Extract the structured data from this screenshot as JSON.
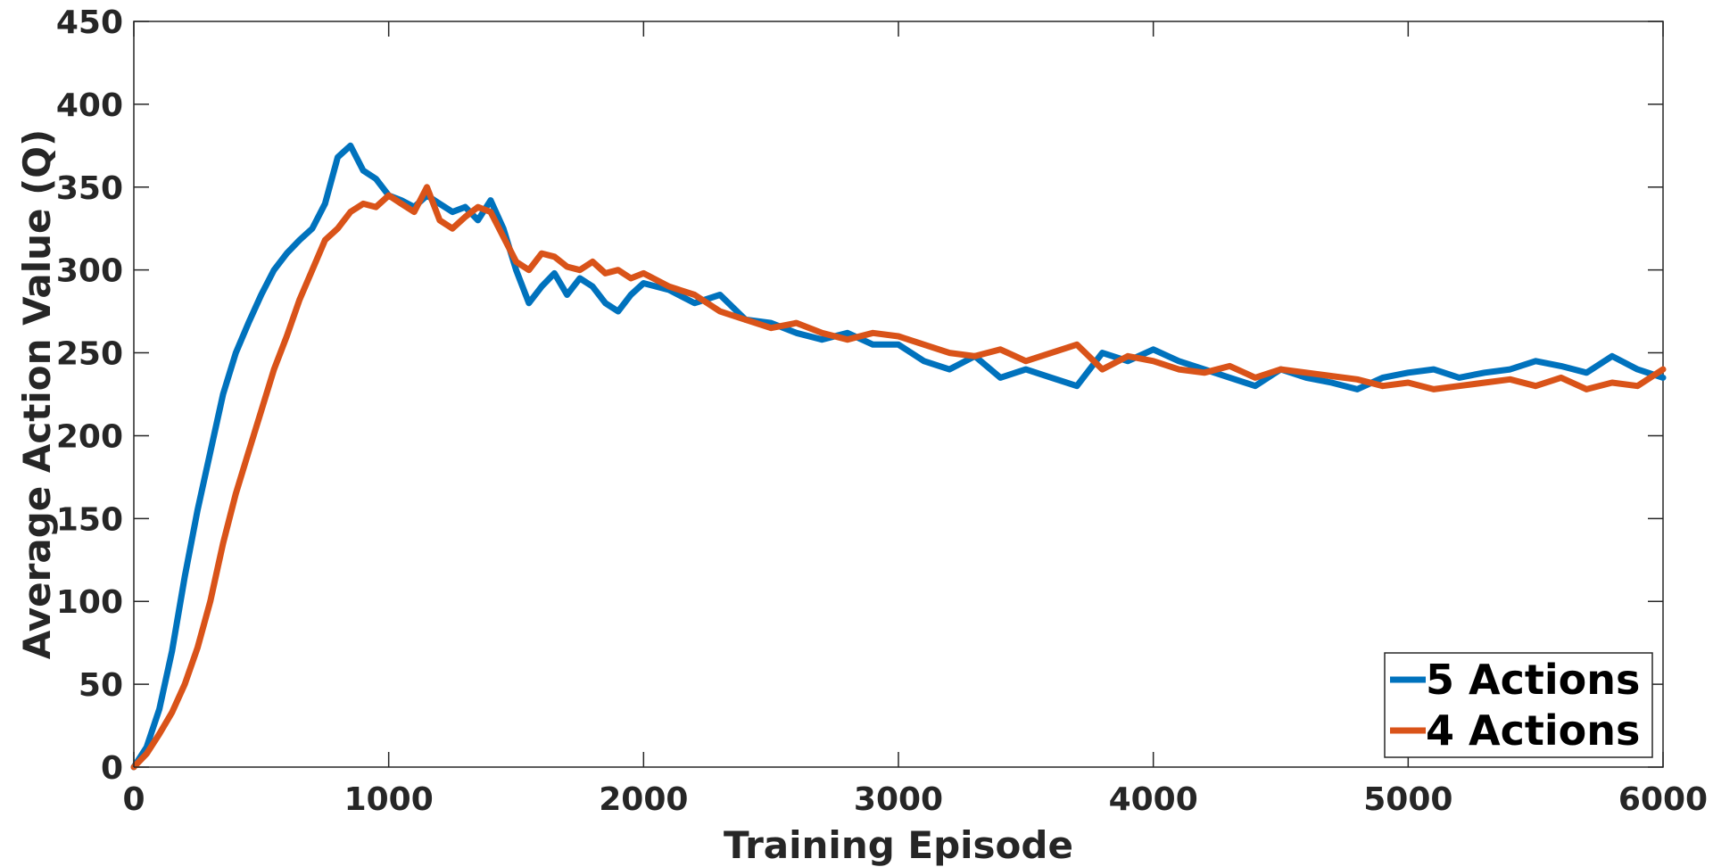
{
  "chart_data": {
    "type": "line",
    "title": "",
    "xlabel": "Training Episode",
    "ylabel": "Average Action Value (Q)",
    "xlim": [
      0,
      6000
    ],
    "ylim": [
      0,
      450
    ],
    "x_ticks": [
      "0",
      "1000",
      "2000",
      "3000",
      "4000",
      "5000",
      "6000"
    ],
    "y_ticks": [
      "0",
      "50",
      "100",
      "150",
      "200",
      "250",
      "300",
      "350",
      "400",
      "450"
    ],
    "grid": false,
    "legend_position": "bottom-right",
    "series": [
      {
        "name": "5 Actions",
        "color": "#0072BD",
        "x": [
          0,
          50,
          100,
          150,
          200,
          250,
          300,
          350,
          400,
          450,
          500,
          550,
          600,
          650,
          700,
          750,
          800,
          850,
          900,
          950,
          1000,
          1050,
          1100,
          1150,
          1200,
          1250,
          1300,
          1350,
          1400,
          1450,
          1500,
          1550,
          1600,
          1650,
          1700,
          1750,
          1800,
          1850,
          1900,
          1950,
          2000,
          2100,
          2200,
          2300,
          2400,
          2500,
          2600,
          2700,
          2800,
          2900,
          3000,
          3100,
          3200,
          3300,
          3400,
          3500,
          3600,
          3700,
          3800,
          3900,
          4000,
          4100,
          4200,
          4300,
          4400,
          4500,
          4600,
          4700,
          4800,
          4900,
          5000,
          5100,
          5200,
          5300,
          5400,
          5500,
          5600,
          5700,
          5800,
          5900,
          6000
        ],
        "y": [
          0,
          12,
          35,
          70,
          115,
          155,
          190,
          225,
          250,
          268,
          285,
          300,
          310,
          318,
          325,
          340,
          368,
          375,
          360,
          355,
          345,
          342,
          338,
          345,
          340,
          335,
          338,
          330,
          342,
          325,
          300,
          280,
          290,
          298,
          285,
          295,
          290,
          280,
          275,
          285,
          292,
          288,
          280,
          285,
          270,
          268,
          262,
          258,
          262,
          255,
          255,
          245,
          240,
          248,
          235,
          240,
          235,
          230,
          250,
          245,
          252,
          245,
          240,
          235,
          230,
          240,
          235,
          232,
          228,
          235,
          238,
          240,
          235,
          238,
          240,
          245,
          242,
          238,
          248,
          240,
          235
        ]
      },
      {
        "name": "4 Actions",
        "color": "#D95319",
        "x": [
          0,
          50,
          100,
          150,
          200,
          250,
          300,
          350,
          400,
          450,
          500,
          550,
          600,
          650,
          700,
          750,
          800,
          850,
          900,
          950,
          1000,
          1050,
          1100,
          1150,
          1200,
          1250,
          1300,
          1350,
          1400,
          1450,
          1500,
          1550,
          1600,
          1650,
          1700,
          1750,
          1800,
          1850,
          1900,
          1950,
          2000,
          2100,
          2200,
          2300,
          2400,
          2500,
          2600,
          2700,
          2800,
          2900,
          3000,
          3100,
          3200,
          3300,
          3400,
          3500,
          3600,
          3700,
          3800,
          3900,
          4000,
          4100,
          4200,
          4300,
          4400,
          4500,
          4600,
          4700,
          4800,
          4900,
          5000,
          5100,
          5200,
          5300,
          5400,
          5500,
          5600,
          5700,
          5800,
          5900,
          6000
        ],
        "y": [
          0,
          8,
          20,
          33,
          50,
          72,
          100,
          135,
          165,
          190,
          215,
          240,
          260,
          282,
          300,
          318,
          325,
          335,
          340,
          338,
          345,
          340,
          335,
          350,
          330,
          325,
          332,
          338,
          335,
          320,
          305,
          300,
          310,
          308,
          302,
          300,
          305,
          298,
          300,
          295,
          298,
          290,
          285,
          275,
          270,
          265,
          268,
          262,
          258,
          262,
          260,
          255,
          250,
          248,
          252,
          245,
          250,
          255,
          240,
          248,
          245,
          240,
          238,
          242,
          235,
          240,
          238,
          236,
          234,
          230,
          232,
          228,
          230,
          232,
          234,
          230,
          235,
          228,
          232,
          230,
          240
        ]
      }
    ]
  }
}
